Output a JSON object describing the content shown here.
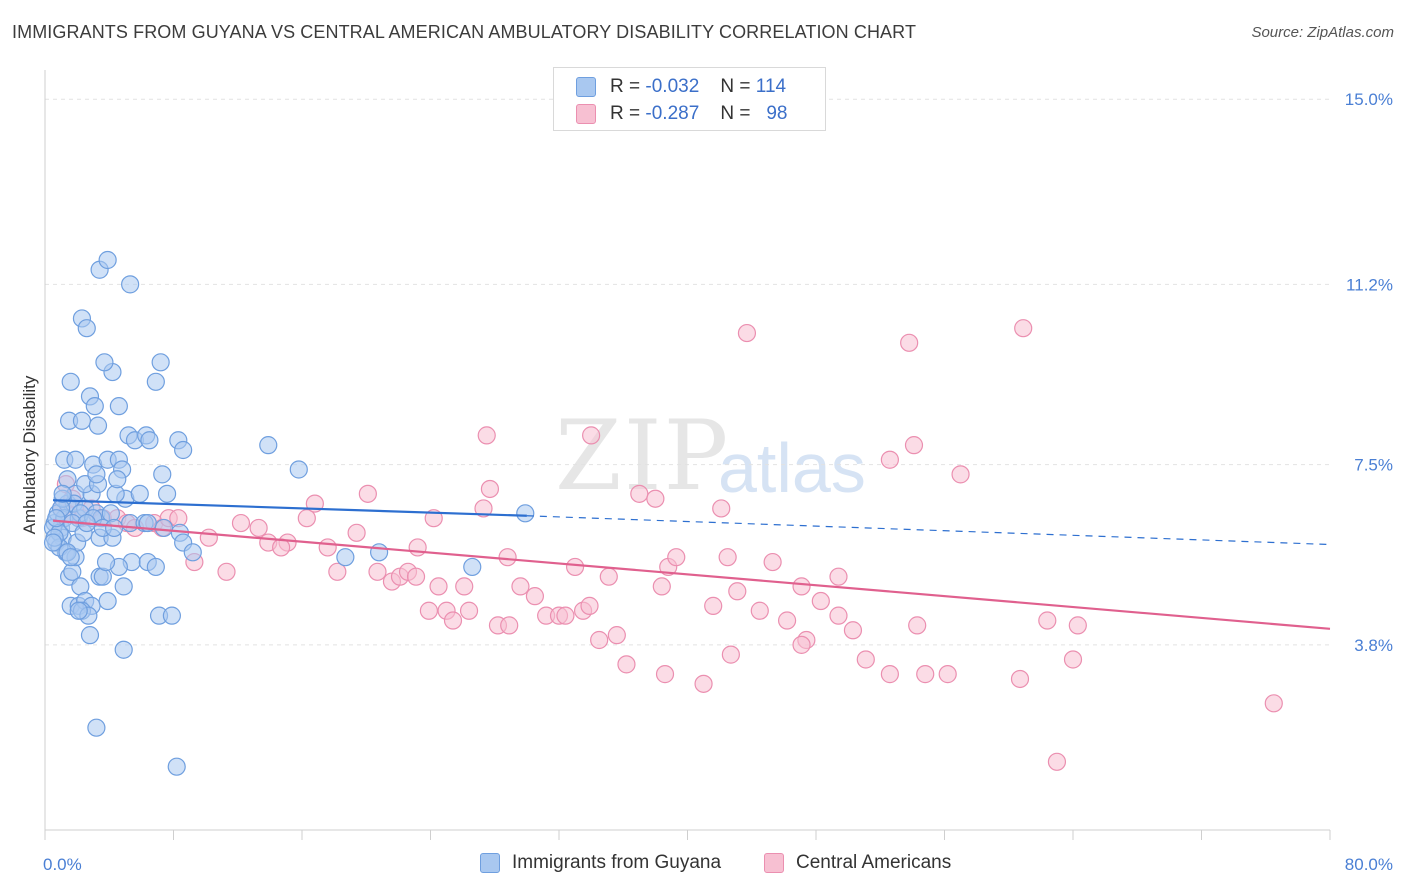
{
  "header": {
    "title": "IMMIGRANTS FROM GUYANA VS CENTRAL AMERICAN AMBULATORY DISABILITY CORRELATION CHART",
    "source": "Source: ZipAtlas.com"
  },
  "watermark": {
    "zip": "ZIP",
    "atlas": "atlas"
  },
  "legend": {
    "rows": [
      {
        "r_label": "R =",
        "r_value": "-0.032",
        "n_label": "N =",
        "n_value": "114"
      },
      {
        "r_label": "R =",
        "r_value": "-0.287",
        "n_label": "N =",
        "n_value": "98"
      }
    ]
  },
  "bottom_legend": {
    "series1": "Immigrants from Guyana",
    "series2": "Central Americans"
  },
  "colors": {
    "blue_fill": "#a9c8f0",
    "blue_stroke": "#6f9fdf",
    "blue_line": "#2d6fd0",
    "pink_fill": "#f7c0d2",
    "pink_stroke": "#eb8fb0",
    "pink_line": "#e0608e",
    "tick_text": "#4a7fd4"
  },
  "chart_data": {
    "type": "scatter",
    "title": "IMMIGRANTS FROM GUYANA VS CENTRAL AMERICAN AMBULATORY DISABILITY CORRELATION CHART",
    "xlabel": "",
    "ylabel": "Ambulatory Disability",
    "xlim": [
      0,
      80
    ],
    "ylim": [
      0,
      15.6
    ],
    "x_tick_labels": [
      "0.0%",
      "80.0%"
    ],
    "y_ticks": [
      3.8,
      7.5,
      11.2,
      15.0
    ],
    "y_tick_labels": [
      "3.8%",
      "7.5%",
      "11.2%",
      "15.0%"
    ],
    "grid": true,
    "legend_position": "top-center",
    "series": [
      {
        "name": "Immigrants from Guyana",
        "color": "#6f9fdf",
        "trend": {
          "x": [
            0.5,
            30
          ],
          "y": [
            6.77,
            6.45
          ],
          "dashed_to": [
            80,
            5.86
          ]
        },
        "points": [
          [
            1.0,
            6.2
          ],
          [
            1.1,
            6.0
          ],
          [
            0.6,
            6.3
          ],
          [
            0.8,
            6.5
          ],
          [
            1.4,
            6.7
          ],
          [
            1.9,
            6.9
          ],
          [
            1.2,
            6.4
          ],
          [
            2.1,
            6.4
          ],
          [
            0.5,
            6.2
          ],
          [
            0.7,
            5.9
          ],
          [
            1.8,
            6.7
          ],
          [
            1.1,
            6.8
          ],
          [
            2.5,
            6.6
          ],
          [
            2.9,
            6.9
          ],
          [
            3.2,
            6.5
          ],
          [
            3.5,
            6.4
          ],
          [
            4.1,
            6.5
          ],
          [
            5.0,
            6.8
          ],
          [
            5.3,
            6.3
          ],
          [
            4.4,
            6.9
          ],
          [
            5.9,
            6.9
          ],
          [
            6.2,
            6.3
          ],
          [
            6.4,
            6.3
          ],
          [
            7.6,
            6.9
          ],
          [
            1.4,
            7.2
          ],
          [
            2.5,
            7.1
          ],
          [
            3.0,
            7.5
          ],
          [
            3.3,
            7.1
          ],
          [
            3.9,
            7.6
          ],
          [
            4.6,
            7.6
          ],
          [
            4.8,
            7.4
          ],
          [
            7.3,
            7.3
          ],
          [
            1.2,
            7.6
          ],
          [
            1.9,
            7.6
          ],
          [
            3.2,
            7.3
          ],
          [
            4.5,
            7.2
          ],
          [
            1.5,
            8.4
          ],
          [
            2.3,
            8.4
          ],
          [
            3.3,
            8.3
          ],
          [
            5.2,
            8.1
          ],
          [
            5.6,
            8.0
          ],
          [
            6.3,
            8.1
          ],
          [
            6.5,
            8.0
          ],
          [
            8.3,
            8.0
          ],
          [
            8.6,
            7.8
          ],
          [
            13.9,
            7.9
          ],
          [
            15.8,
            7.4
          ],
          [
            2.8,
            8.9
          ],
          [
            3.1,
            8.7
          ],
          [
            4.6,
            8.7
          ],
          [
            1.6,
            9.2
          ],
          [
            4.2,
            9.4
          ],
          [
            3.7,
            9.6
          ],
          [
            6.9,
            9.2
          ],
          [
            7.2,
            9.6
          ],
          [
            2.3,
            10.5
          ],
          [
            2.6,
            10.3
          ],
          [
            3.4,
            11.5
          ],
          [
            3.9,
            11.7
          ],
          [
            5.3,
            11.2
          ],
          [
            0.9,
            6.1
          ],
          [
            1.3,
            5.7
          ],
          [
            1.5,
            5.2
          ],
          [
            1.7,
            5.3
          ],
          [
            1.9,
            5.6
          ],
          [
            2.0,
            5.9
          ],
          [
            2.2,
            5.0
          ],
          [
            1.6,
            4.6
          ],
          [
            2.1,
            4.6
          ],
          [
            2.5,
            4.7
          ],
          [
            2.9,
            4.6
          ],
          [
            3.4,
            5.2
          ],
          [
            3.6,
            5.2
          ],
          [
            3.9,
            4.7
          ],
          [
            4.9,
            5.0
          ],
          [
            5.4,
            5.5
          ],
          [
            6.4,
            5.5
          ],
          [
            4.6,
            5.4
          ],
          [
            3.8,
            5.5
          ],
          [
            7.1,
            4.4
          ],
          [
            7.9,
            4.4
          ],
          [
            2.8,
            4.0
          ],
          [
            4.9,
            3.7
          ],
          [
            3.2,
            2.1
          ],
          [
            8.2,
            1.3
          ],
          [
            2.3,
            4.5
          ],
          [
            2.7,
            4.4
          ],
          [
            2.1,
            4.5
          ],
          [
            8.4,
            6.1
          ],
          [
            8.6,
            5.9
          ],
          [
            9.2,
            5.7
          ],
          [
            18.7,
            5.6
          ],
          [
            20.8,
            5.7
          ],
          [
            26.6,
            5.4
          ],
          [
            29.9,
            6.5
          ],
          [
            6.9,
            5.4
          ],
          [
            7.4,
            6.2
          ],
          [
            1.0,
            6.6
          ],
          [
            0.7,
            6.4
          ],
          [
            2.2,
            6.5
          ],
          [
            3.4,
            6.0
          ],
          [
            4.2,
            6.0
          ],
          [
            1.1,
            6.9
          ],
          [
            1.7,
            6.3
          ],
          [
            2.4,
            6.1
          ],
          [
            0.9,
            5.8
          ],
          [
            1.4,
            5.7
          ],
          [
            1.6,
            5.6
          ],
          [
            3.0,
            6.4
          ],
          [
            3.6,
            6.2
          ],
          [
            4.3,
            6.2
          ],
          [
            2.6,
            6.3
          ],
          [
            0.6,
            6.0
          ],
          [
            0.5,
            5.9
          ]
        ]
      },
      {
        "name": "Central Americans",
        "color": "#eb8fb0",
        "trend": {
          "x": [
            0.5,
            80
          ],
          "y": [
            6.35,
            4.13
          ]
        },
        "points": [
          [
            1.0,
            6.6
          ],
          [
            1.4,
            6.5
          ],
          [
            1.7,
            6.8
          ],
          [
            2.3,
            6.4
          ],
          [
            2.9,
            6.6
          ],
          [
            3.6,
            6.4
          ],
          [
            4.5,
            6.4
          ],
          [
            1.3,
            7.1
          ],
          [
            5.1,
            6.3
          ],
          [
            5.6,
            6.2
          ],
          [
            6.8,
            6.3
          ],
          [
            7.3,
            6.2
          ],
          [
            7.7,
            6.4
          ],
          [
            8.3,
            6.4
          ],
          [
            9.3,
            5.5
          ],
          [
            10.2,
            6.0
          ],
          [
            11.3,
            5.3
          ],
          [
            12.2,
            6.3
          ],
          [
            13.3,
            6.2
          ],
          [
            13.9,
            5.9
          ],
          [
            15.1,
            5.9
          ],
          [
            14.7,
            5.8
          ],
          [
            16.3,
            6.4
          ],
          [
            16.8,
            6.7
          ],
          [
            17.6,
            5.8
          ],
          [
            18.2,
            5.3
          ],
          [
            19.4,
            6.1
          ],
          [
            20.1,
            6.9
          ],
          [
            20.7,
            5.3
          ],
          [
            21.6,
            5.1
          ],
          [
            22.1,
            5.2
          ],
          [
            22.6,
            5.3
          ],
          [
            23.2,
            5.8
          ],
          [
            23.1,
            5.2
          ],
          [
            23.9,
            4.5
          ],
          [
            24.2,
            6.4
          ],
          [
            24.5,
            5.0
          ],
          [
            25.0,
            4.5
          ],
          [
            25.4,
            4.3
          ],
          [
            26.1,
            5.0
          ],
          [
            26.4,
            4.5
          ],
          [
            27.3,
            6.6
          ],
          [
            27.7,
            7.0
          ],
          [
            28.2,
            4.2
          ],
          [
            28.8,
            5.6
          ],
          [
            28.9,
            4.2
          ],
          [
            29.6,
            5.0
          ],
          [
            30.5,
            4.8
          ],
          [
            31.2,
            4.4
          ],
          [
            32.0,
            4.4
          ],
          [
            33.5,
            4.5
          ],
          [
            33.0,
            5.4
          ],
          [
            33.9,
            4.6
          ],
          [
            35.1,
            5.2
          ],
          [
            32.4,
            4.4
          ],
          [
            34.5,
            3.9
          ],
          [
            35.6,
            4.0
          ],
          [
            36.2,
            3.4
          ],
          [
            37.0,
            6.9
          ],
          [
            38.0,
            6.8
          ],
          [
            38.4,
            5.0
          ],
          [
            38.8,
            5.4
          ],
          [
            39.3,
            5.6
          ],
          [
            41.6,
            4.6
          ],
          [
            42.1,
            6.6
          ],
          [
            43.1,
            4.9
          ],
          [
            44.5,
            4.5
          ],
          [
            45.3,
            5.5
          ],
          [
            46.2,
            4.3
          ],
          [
            47.4,
            3.9
          ],
          [
            48.3,
            4.7
          ],
          [
            49.4,
            4.4
          ],
          [
            50.3,
            4.1
          ],
          [
            41.0,
            3.0
          ],
          [
            38.6,
            3.2
          ],
          [
            42.7,
            3.6
          ],
          [
            47.1,
            3.8
          ],
          [
            51.1,
            3.5
          ],
          [
            52.6,
            3.2
          ],
          [
            54.8,
            3.2
          ],
          [
            56.2,
            3.2
          ],
          [
            49.4,
            5.2
          ],
          [
            54.3,
            4.2
          ],
          [
            47.1,
            5.0
          ],
          [
            42.5,
            5.6
          ],
          [
            43.7,
            10.2
          ],
          [
            53.8,
            10.0
          ],
          [
            60.9,
            10.3
          ],
          [
            27.5,
            8.1
          ],
          [
            34.0,
            8.1
          ],
          [
            52.6,
            7.6
          ],
          [
            54.1,
            7.9
          ],
          [
            57.0,
            7.3
          ],
          [
            62.4,
            4.3
          ],
          [
            64.3,
            4.2
          ],
          [
            60.7,
            3.1
          ],
          [
            64.0,
            3.5
          ],
          [
            76.5,
            2.6
          ]
        ],
        "extra_points": [
          [
            63.0,
            1.4
          ]
        ]
      }
    ]
  }
}
